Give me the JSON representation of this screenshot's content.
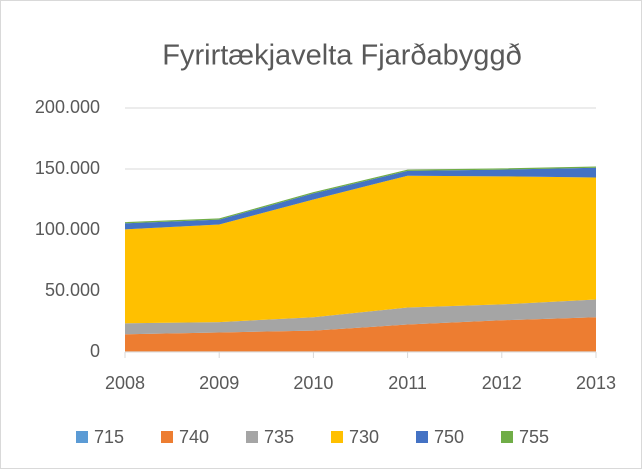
{
  "chart_data": {
    "type": "stacked_area",
    "title": "Fyrirtækjavelta Fjarðabyggð",
    "categories": [
      "2008",
      "2009",
      "2010",
      "2011",
      "2012",
      "2013"
    ],
    "series": [
      {
        "name": "715",
        "color": "#5b9bd5",
        "values": [
          500,
          500,
          500,
          500,
          500,
          500
        ]
      },
      {
        "name": "740",
        "color": "#ed7d31",
        "values": [
          14000,
          15500,
          17000,
          22000,
          25500,
          28000
        ]
      },
      {
        "name": "735",
        "color": "#a5a5a5",
        "values": [
          9000,
          8500,
          11000,
          14000,
          13000,
          14500
        ]
      },
      {
        "name": "730",
        "color": "#ffc000",
        "values": [
          77000,
          80000,
          96500,
          108000,
          105000,
          100000
        ]
      },
      {
        "name": "750",
        "color": "#4472c4",
        "values": [
          5000,
          4000,
          5000,
          4000,
          5500,
          8000
        ]
      },
      {
        "name": "755",
        "color": "#70ad47",
        "values": [
          1000,
          1000,
          1000,
          1000,
          1000,
          1000
        ]
      }
    ],
    "ylim": [
      0,
      200000
    ],
    "yticks": [
      0,
      {
        "value": 50000,
        "label": "50.000"
      },
      {
        "value": 100000,
        "label": "100.000"
      },
      {
        "value": 150000,
        "label": "150.000"
      },
      {
        "value": 200000,
        "label": "200.000"
      }
    ],
    "grid": true,
    "legend": "bottom"
  }
}
